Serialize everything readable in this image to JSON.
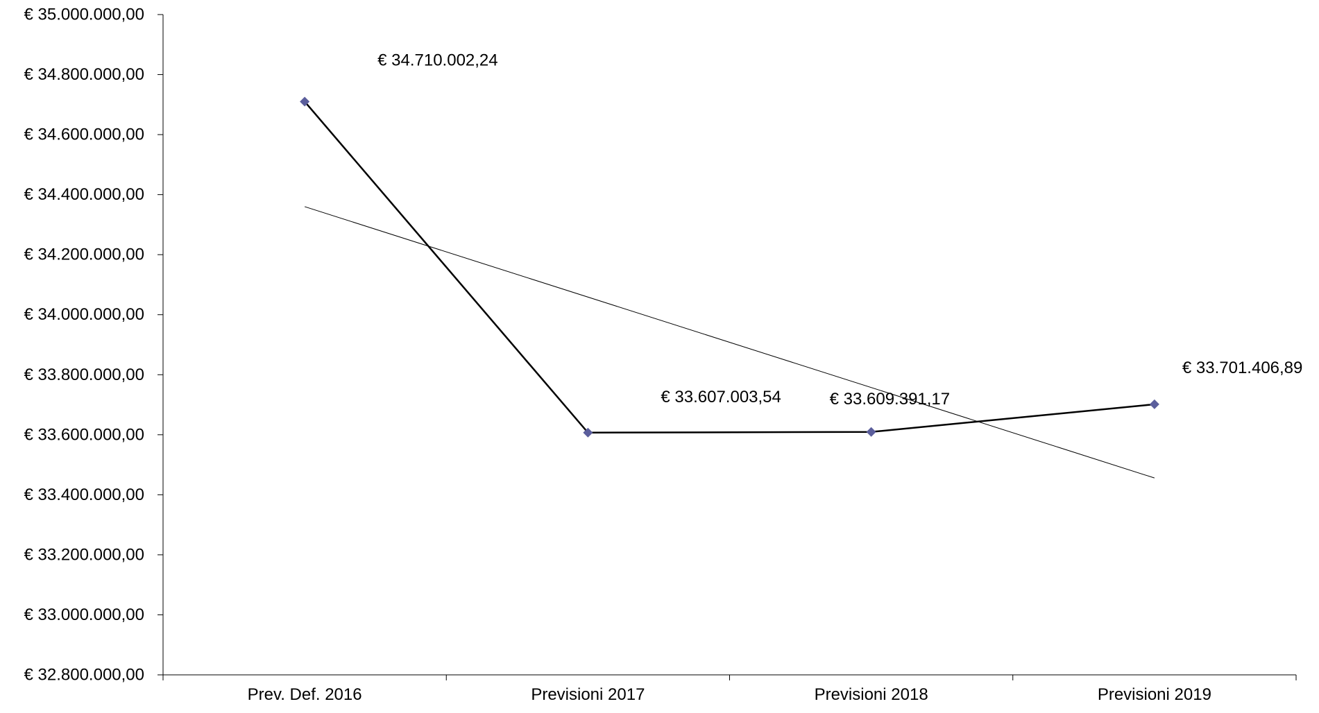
{
  "chart_data": {
    "type": "line",
    "title": "",
    "xlabel": "",
    "ylabel": "",
    "categories": [
      "Prev. Def. 2016",
      "Previsioni 2017",
      "Previsioni 2018",
      "Previsioni 2019"
    ],
    "series": [
      {
        "values": [
          34710002.24,
          33607003.54,
          33609391.17,
          33701406.89
        ],
        "data_labels": [
          "€ 34.710.002,24",
          "€ 33.607.003,54",
          "€ 33.609.391,17",
          "€ 33.701.406,89"
        ],
        "color": "#000000",
        "marker": "diamond",
        "marker_color": "#5B5E9C"
      }
    ],
    "trendline": {
      "type": "linear",
      "values": [
        34360000,
        33456000
      ],
      "color": "#000000"
    },
    "ylim": [
      32800000,
      35000000
    ],
    "y_ticks": [
      32800000,
      33000000,
      33200000,
      33400000,
      33600000,
      33800000,
      34000000,
      34200000,
      34400000,
      34600000,
      34800000,
      35000000
    ],
    "y_tick_labels": [
      "€ 32.800.000,00",
      "€ 33.000.000,00",
      "€ 33.200.000,00",
      "€ 33.400.000,00",
      "€ 33.600.000,00",
      "€ 33.800.000,00",
      "€ 34.000.000,00",
      "€ 34.200.000,00",
      "€ 34.400.000,00",
      "€ 34.600.000,00",
      "€ 34.800.000,00",
      "€ 35.000.000,00"
    ],
    "grid": false,
    "legend": "none"
  }
}
